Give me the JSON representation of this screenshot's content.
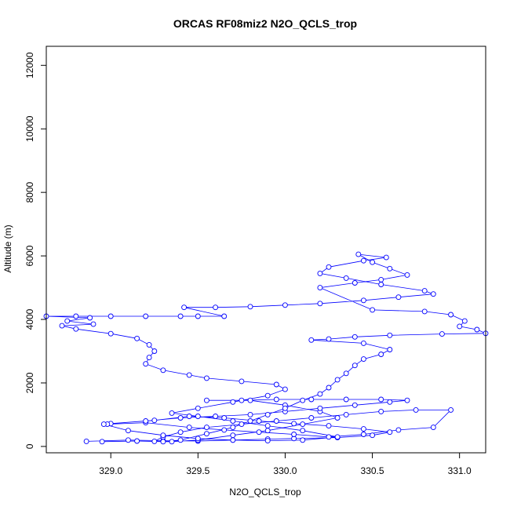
{
  "chart_data": {
    "type": "line",
    "title": "ORCAS RF08miz2 N2O_QCLS_trop",
    "xlabel": "N2O_QCLS_trop",
    "ylabel": "Altitude (m)",
    "xlim": [
      328.63,
      331.15
    ],
    "ylim": [
      -200,
      12600
    ],
    "xticks": [
      329.0,
      329.5,
      330.0,
      330.5,
      331.0
    ],
    "xtick_labels": [
      "329.0",
      "329.5",
      "330.0",
      "330.5",
      "331.0"
    ],
    "yticks": [
      0,
      2000,
      4000,
      6000,
      8000,
      10000,
      12000
    ],
    "ytick_labels": [
      "0",
      "2000",
      "4000",
      "6000",
      "8000",
      "10000",
      "12000"
    ],
    "series": [
      {
        "color": "#0000ff",
        "marker": "open-circle",
        "points": [
          [
            328.86,
            160
          ],
          [
            329.1,
            200
          ],
          [
            329.3,
            180
          ],
          [
            329.5,
            170
          ],
          [
            329.7,
            200
          ],
          [
            329.9,
            230
          ],
          [
            330.05,
            250
          ],
          [
            330.3,
            280
          ],
          [
            330.5,
            350
          ],
          [
            330.6,
            450
          ],
          [
            330.45,
            550
          ],
          [
            330.25,
            650
          ],
          [
            330.05,
            720
          ],
          [
            329.85,
            800
          ],
          [
            329.65,
            900
          ],
          [
            329.45,
            950
          ],
          [
            329.25,
            820
          ],
          [
            329.0,
            720
          ],
          [
            328.98,
            700
          ],
          [
            329.2,
            750
          ],
          [
            329.45,
            600
          ],
          [
            329.65,
            520
          ],
          [
            329.85,
            450
          ],
          [
            330.05,
            380
          ],
          [
            330.25,
            300
          ],
          [
            330.45,
            380
          ],
          [
            330.65,
            520
          ],
          [
            330.85,
            600
          ],
          [
            330.95,
            1150
          ],
          [
            330.75,
            1150
          ],
          [
            330.55,
            1100
          ],
          [
            330.35,
            1000
          ],
          [
            330.15,
            900
          ],
          [
            329.95,
            800
          ],
          [
            329.75,
            700
          ],
          [
            329.55,
            600
          ],
          [
            329.4,
            450
          ],
          [
            329.3,
            300
          ],
          [
            329.25,
            160
          ],
          [
            329.35,
            150
          ],
          [
            329.5,
            200
          ],
          [
            329.7,
            350
          ],
          [
            329.9,
            500
          ],
          [
            330.1,
            700
          ],
          [
            330.3,
            900
          ],
          [
            330.2,
            1100
          ],
          [
            330.0,
            1300
          ],
          [
            329.8,
            1450
          ],
          [
            329.55,
            1450
          ],
          [
            329.75,
            1450
          ],
          [
            329.95,
            1480
          ],
          [
            330.15,
            1480
          ],
          [
            330.35,
            1480
          ],
          [
            330.55,
            1480
          ],
          [
            330.7,
            1450
          ],
          [
            330.6,
            1400
          ],
          [
            330.4,
            1300
          ],
          [
            330.2,
            1200
          ],
          [
            330.0,
            1100
          ],
          [
            329.8,
            1000
          ],
          [
            329.6,
            950
          ],
          [
            329.4,
            900
          ],
          [
            329.2,
            800
          ],
          [
            328.96,
            700
          ],
          [
            329.1,
            500
          ],
          [
            329.3,
            350
          ],
          [
            329.5,
            250
          ],
          [
            329.7,
            200
          ],
          [
            329.9,
            180
          ],
          [
            330.1,
            200
          ],
          [
            330.3,
            300
          ],
          [
            330.1,
            500
          ],
          [
            329.9,
            650
          ],
          [
            329.7,
            800
          ],
          [
            329.5,
            950
          ],
          [
            329.35,
            1050
          ],
          [
            329.5,
            1200
          ],
          [
            329.7,
            1400
          ],
          [
            329.9,
            1600
          ],
          [
            330.0,
            1800
          ],
          [
            329.95,
            1950
          ],
          [
            329.75,
            2050
          ],
          [
            329.55,
            2150
          ],
          [
            329.45,
            2250
          ],
          [
            329.3,
            2400
          ],
          [
            329.2,
            2600
          ],
          [
            329.22,
            2800
          ],
          [
            329.25,
            3000
          ],
          [
            329.22,
            3200
          ],
          [
            329.15,
            3400
          ],
          [
            329.0,
            3550
          ],
          [
            328.8,
            3700
          ],
          [
            328.72,
            3800
          ],
          [
            328.9,
            3850
          ],
          [
            328.75,
            3950
          ],
          [
            328.88,
            4050
          ],
          [
            328.63,
            4100
          ],
          [
            328.8,
            4100
          ],
          [
            329.0,
            4100
          ],
          [
            329.2,
            4100
          ],
          [
            329.4,
            4100
          ],
          [
            329.5,
            4100
          ],
          [
            329.65,
            4100
          ],
          [
            329.42,
            4380
          ],
          [
            329.6,
            4380
          ],
          [
            329.8,
            4400
          ],
          [
            330.0,
            4450
          ],
          [
            330.2,
            4500
          ],
          [
            330.45,
            4600
          ],
          [
            330.65,
            4700
          ],
          [
            330.85,
            4800
          ],
          [
            330.8,
            4900
          ],
          [
            330.55,
            5100
          ],
          [
            330.35,
            5300
          ],
          [
            330.2,
            5450
          ],
          [
            330.25,
            5650
          ],
          [
            330.45,
            5850
          ],
          [
            330.58,
            5950
          ],
          [
            330.42,
            6050
          ],
          [
            330.5,
            5800
          ],
          [
            330.6,
            5600
          ],
          [
            330.7,
            5400
          ],
          [
            330.55,
            5250
          ],
          [
            330.4,
            5150
          ],
          [
            330.2,
            5000
          ],
          [
            330.5,
            4300
          ],
          [
            330.8,
            4250
          ],
          [
            330.95,
            4150
          ],
          [
            331.03,
            3950
          ],
          [
            331.0,
            3780
          ],
          [
            331.1,
            3680
          ],
          [
            331.15,
            3560
          ],
          [
            330.9,
            3540
          ],
          [
            330.6,
            3500
          ],
          [
            330.4,
            3450
          ],
          [
            330.25,
            3380
          ],
          [
            330.15,
            3350
          ],
          [
            330.45,
            3250
          ],
          [
            330.6,
            3050
          ],
          [
            330.55,
            2900
          ],
          [
            330.45,
            2750
          ],
          [
            330.4,
            2550
          ],
          [
            330.35,
            2300
          ],
          [
            330.3,
            2100
          ],
          [
            330.25,
            1850
          ],
          [
            330.2,
            1650
          ],
          [
            330.1,
            1450
          ],
          [
            330.0,
            1200
          ],
          [
            329.9,
            1000
          ],
          [
            329.8,
            800
          ],
          [
            329.7,
            600
          ],
          [
            329.55,
            400
          ],
          [
            329.4,
            200
          ],
          [
            329.3,
            150
          ],
          [
            329.15,
            170
          ],
          [
            328.95,
            150
          ]
        ]
      }
    ]
  }
}
